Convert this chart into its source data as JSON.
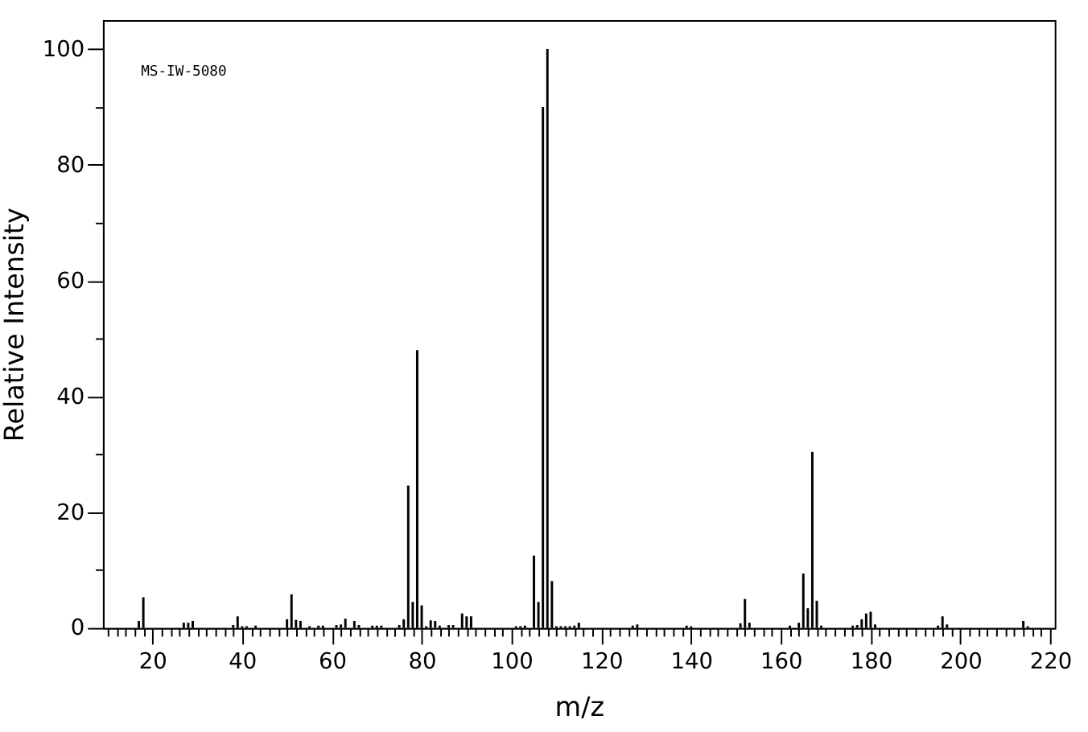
{
  "chart_data": {
    "type": "bar",
    "xlabel": "m/z",
    "ylabel": "Relative Intensity",
    "annotations": [
      "MS-IW-5080"
    ],
    "x": [
      17,
      18,
      27,
      28,
      29,
      38,
      39,
      40,
      41,
      43,
      50,
      51,
      52,
      53,
      55,
      57,
      58,
      61,
      62,
      63,
      65,
      66,
      69,
      70,
      71,
      75,
      76,
      77,
      78,
      79,
      80,
      81,
      82,
      83,
      84,
      86,
      87,
      89,
      90,
      91,
      101,
      102,
      103,
      105,
      106,
      107,
      108,
      109,
      110,
      111,
      112,
      113,
      114,
      115,
      127,
      128,
      139,
      140,
      151,
      152,
      153,
      162,
      164,
      165,
      166,
      167,
      168,
      169,
      176,
      177,
      178,
      179,
      180,
      181,
      195,
      196,
      197,
      214,
      215
    ],
    "series": [
      {
        "color": "#000000",
        "values": [
          1.2,
          5.3,
          0.9,
          0.9,
          1.2,
          0.5,
          2.0,
          0.3,
          0.3,
          0.4,
          1.5,
          5.8,
          1.4,
          1.2,
          0.3,
          0.4,
          0.4,
          0.5,
          0.6,
          1.6,
          1.2,
          0.5,
          0.4,
          0.4,
          0.4,
          0.5,
          1.5,
          24.6,
          4.5,
          48,
          3.9,
          0.3,
          1.3,
          1.2,
          0.4,
          0.5,
          0.5,
          2.5,
          2.0,
          2.0,
          0.3,
          0.3,
          0.4,
          12.5,
          4.5,
          90,
          100,
          8.1,
          0.3,
          0.3,
          0.3,
          0.3,
          0.4,
          0.9,
          0.4,
          0.6,
          0.4,
          0.3,
          0.8,
          5.0,
          0.9,
          0.4,
          0.9,
          9.4,
          3.4,
          30.4,
          4.7,
          0.4,
          0.4,
          0.5,
          1.5,
          2.5,
          2.8,
          0.6,
          0.4,
          2.0,
          0.6,
          1.2,
          0.3
        ]
      }
    ],
    "xlim": [
      9,
      221
    ],
    "ylim": [
      0,
      105
    ],
    "xticks": [
      {
        "value": 10,
        "label": null
      },
      {
        "value": 12,
        "label": null
      },
      {
        "value": 14,
        "label": null
      },
      {
        "value": 16,
        "label": null
      },
      {
        "value": 18,
        "label": null
      },
      20,
      {
        "value": 22,
        "label": null
      },
      {
        "value": 24,
        "label": null
      },
      {
        "value": 26,
        "label": null
      },
      {
        "value": 28,
        "label": null
      },
      {
        "value": 30,
        "label": null
      },
      {
        "value": 32,
        "label": null
      },
      {
        "value": 34,
        "label": null
      },
      {
        "value": 36,
        "label": null
      },
      {
        "value": 38,
        "label": null
      },
      40,
      {
        "value": 42,
        "label": null
      },
      {
        "value": 44,
        "label": null
      },
      {
        "value": 46,
        "label": null
      },
      {
        "value": 48,
        "label": null
      },
      {
        "value": 50,
        "label": null
      },
      {
        "value": 52,
        "label": null
      },
      {
        "value": 54,
        "label": null
      },
      {
        "value": 56,
        "label": null
      },
      {
        "value": 58,
        "label": null
      },
      60,
      {
        "value": 62,
        "label": null
      },
      {
        "value": 64,
        "label": null
      },
      {
        "value": 66,
        "label": null
      },
      {
        "value": 68,
        "label": null
      },
      {
        "value": 70,
        "label": null
      },
      {
        "value": 72,
        "label": null
      },
      {
        "value": 74,
        "label": null
      },
      {
        "value": 76,
        "label": null
      },
      {
        "value": 78,
        "label": null
      },
      80,
      {
        "value": 82,
        "label": null
      },
      {
        "value": 84,
        "label": null
      },
      {
        "value": 86,
        "label": null
      },
      {
        "value": 88,
        "label": null
      },
      {
        "value": 90,
        "label": null
      },
      {
        "value": 92,
        "label": null
      },
      {
        "value": 94,
        "label": null
      },
      {
        "value": 96,
        "label": null
      },
      {
        "value": 98,
        "label": null
      },
      100,
      {
        "value": 102,
        "label": null
      },
      {
        "value": 104,
        "label": null
      },
      {
        "value": 106,
        "label": null
      },
      {
        "value": 108,
        "label": null
      },
      {
        "value": 110,
        "label": null
      },
      {
        "value": 112,
        "label": null
      },
      {
        "value": 114,
        "label": null
      },
      {
        "value": 116,
        "label": null
      },
      {
        "value": 118,
        "label": null
      },
      120,
      {
        "value": 122,
        "label": null
      },
      {
        "value": 124,
        "label": null
      },
      {
        "value": 126,
        "label": null
      },
      {
        "value": 128,
        "label": null
      },
      {
        "value": 130,
        "label": null
      },
      {
        "value": 132,
        "label": null
      },
      {
        "value": 134,
        "label": null
      },
      {
        "value": 136,
        "label": null
      },
      {
        "value": 138,
        "label": null
      },
      140,
      {
        "value": 142,
        "label": null
      },
      {
        "value": 144,
        "label": null
      },
      {
        "value": 146,
        "label": null
      },
      {
        "value": 148,
        "label": null
      },
      {
        "value": 150,
        "label": null
      },
      {
        "value": 152,
        "label": null
      },
      {
        "value": 154,
        "label": null
      },
      {
        "value": 156,
        "label": null
      },
      {
        "value": 158,
        "label": null
      },
      160,
      {
        "value": 162,
        "label": null
      },
      {
        "value": 164,
        "label": null
      },
      {
        "value": 166,
        "label": null
      },
      {
        "value": 168,
        "label": null
      },
      {
        "value": 170,
        "label": null
      },
      {
        "value": 172,
        "label": null
      },
      {
        "value": 174,
        "label": null
      },
      {
        "value": 176,
        "label": null
      },
      {
        "value": 178,
        "label": null
      },
      180,
      {
        "value": 182,
        "label": null
      },
      {
        "value": 184,
        "label": null
      },
      {
        "value": 186,
        "label": null
      },
      {
        "value": 188,
        "label": null
      },
      {
        "value": 190,
        "label": null
      },
      {
        "value": 192,
        "label": null
      },
      {
        "value": 194,
        "label": null
      },
      {
        "value": 196,
        "label": null
      },
      {
        "value": 198,
        "label": null
      },
      200,
      {
        "value": 202,
        "label": null
      },
      {
        "value": 204,
        "label": null
      },
      {
        "value": 206,
        "label": null
      },
      {
        "value": 208,
        "label": null
      },
      {
        "value": 210,
        "label": null
      },
      {
        "value": 212,
        "label": null
      },
      {
        "value": 214,
        "label": null
      },
      {
        "value": 216,
        "label": null
      },
      {
        "value": 218,
        "label": null
      },
      220
    ],
    "yticks": [
      0,
      {
        "value": 10,
        "label": null
      },
      20,
      {
        "value": 30,
        "label": null
      },
      40,
      {
        "value": 50,
        "label": null
      },
      60,
      {
        "value": 70,
        "label": null
      },
      80,
      {
        "value": 90,
        "label": null
      },
      100
    ],
    "grid": false
  }
}
